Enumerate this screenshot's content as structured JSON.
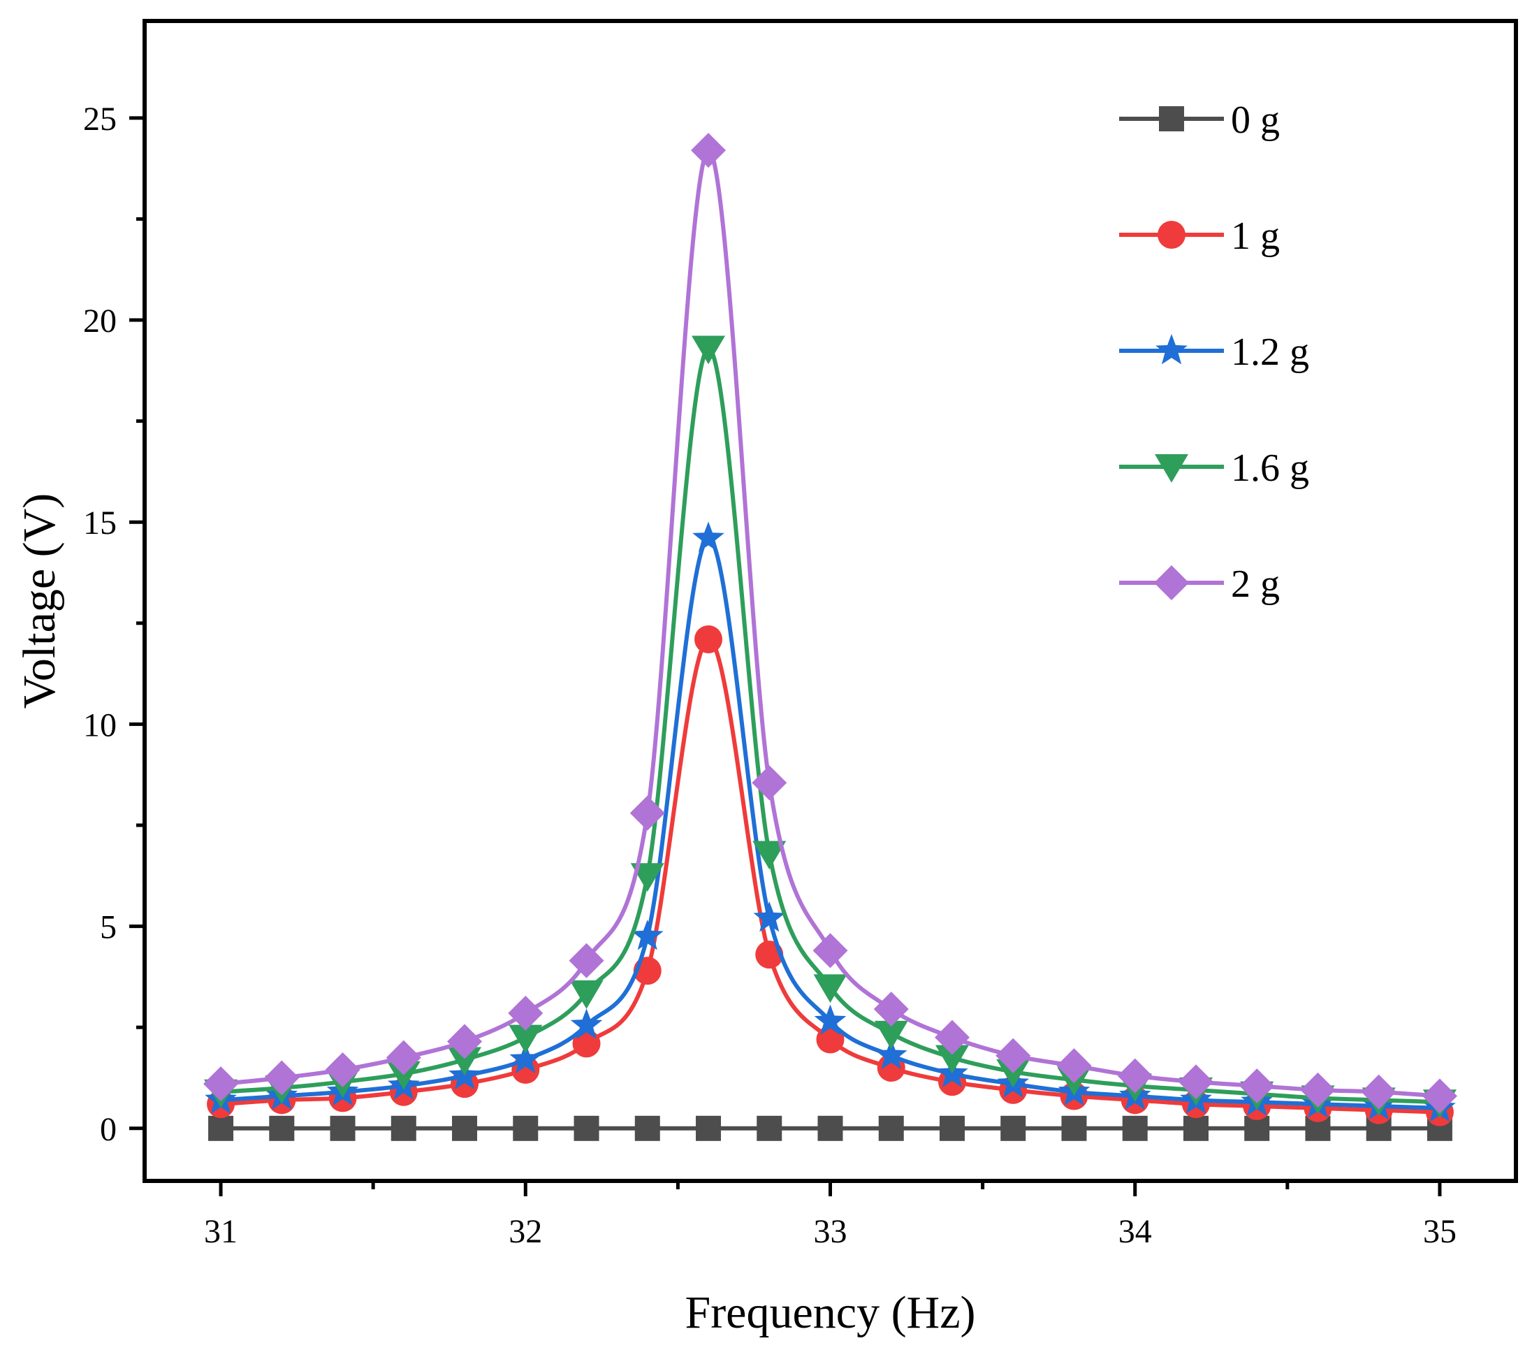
{
  "chart_data": {
    "type": "line",
    "title": "",
    "xlabel": "Frequency (Hz)",
    "ylabel": "Voltage (V)",
    "xlim": [
      30.75,
      35.25
    ],
    "ylim": [
      -1.3,
      27.4
    ],
    "xticks": [
      31,
      32,
      33,
      34,
      35
    ],
    "yticks": [
      0,
      5,
      10,
      15,
      20,
      25
    ],
    "xtick_labels": [
      "31",
      "32",
      "33",
      "34",
      "35"
    ],
    "ytick_labels": [
      "0",
      "5",
      "10",
      "15",
      "20",
      "25"
    ],
    "grid": false,
    "legend_position": "top-right",
    "x": [
      31.0,
      31.2,
      31.4,
      31.6,
      31.8,
      32.0,
      32.2,
      32.4,
      32.6,
      32.8,
      33.0,
      33.2,
      33.4,
      33.6,
      33.8,
      34.0,
      34.2,
      34.4,
      34.6,
      34.8,
      35.0
    ],
    "series": [
      {
        "name": "0 g",
        "color": "#4d4d4d",
        "marker": "square",
        "values": [
          0,
          0,
          0,
          0,
          0,
          0,
          0,
          0,
          0,
          0,
          0,
          0,
          0,
          0,
          0,
          0,
          0,
          0,
          0,
          0,
          0
        ]
      },
      {
        "name": "1 g",
        "color": "#ef3b3b",
        "marker": "circle",
        "values": [
          0.6,
          0.7,
          0.75,
          0.9,
          1.1,
          1.45,
          2.1,
          3.9,
          12.1,
          4.3,
          2.2,
          1.5,
          1.15,
          0.95,
          0.8,
          0.7,
          0.6,
          0.55,
          0.5,
          0.45,
          0.4
        ]
      },
      {
        "name": "1.2 g",
        "color": "#1f6fd6",
        "marker": "star",
        "values": [
          0.7,
          0.8,
          0.9,
          1.05,
          1.3,
          1.7,
          2.55,
          4.75,
          14.6,
          5.2,
          2.65,
          1.8,
          1.35,
          1.1,
          0.9,
          0.8,
          0.7,
          0.65,
          0.6,
          0.55,
          0.5
        ]
      },
      {
        "name": "1.6 g",
        "color": "#2e9e5b",
        "marker": "triangle-down",
        "values": [
          0.9,
          1.0,
          1.15,
          1.35,
          1.7,
          2.25,
          3.35,
          6.25,
          19.3,
          6.8,
          3.5,
          2.35,
          1.75,
          1.4,
          1.2,
          1.05,
          0.95,
          0.85,
          0.75,
          0.7,
          0.65
        ]
      },
      {
        "name": "2 g",
        "color": "#b073d6",
        "marker": "diamond",
        "values": [
          1.1,
          1.25,
          1.45,
          1.75,
          2.15,
          2.85,
          4.15,
          7.8,
          24.2,
          8.55,
          4.4,
          2.95,
          2.25,
          1.8,
          1.55,
          1.3,
          1.15,
          1.05,
          0.95,
          0.9,
          0.8
        ]
      }
    ]
  }
}
